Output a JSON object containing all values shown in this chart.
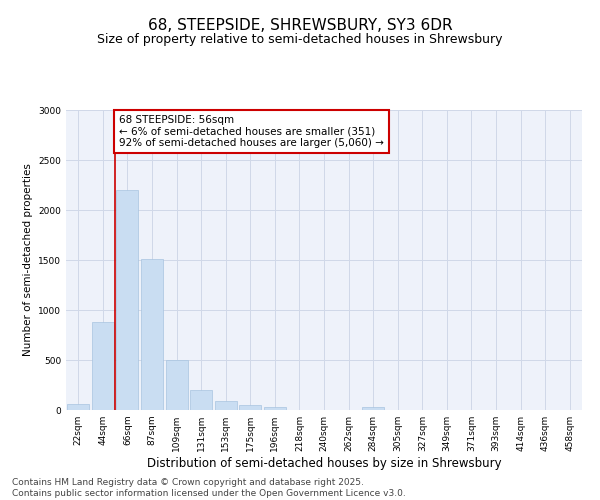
{
  "title": "68, STEEPSIDE, SHREWSBURY, SY3 6DR",
  "subtitle": "Size of property relative to semi-detached houses in Shrewsbury",
  "xlabel": "Distribution of semi-detached houses by size in Shrewsbury",
  "ylabel": "Number of semi-detached properties",
  "footer_line1": "Contains HM Land Registry data © Crown copyright and database right 2025.",
  "footer_line2": "Contains public sector information licensed under the Open Government Licence v3.0.",
  "bar_labels": [
    "22sqm",
    "44sqm",
    "66sqm",
    "87sqm",
    "109sqm",
    "131sqm",
    "153sqm",
    "175sqm",
    "196sqm",
    "218sqm",
    "240sqm",
    "262sqm",
    "284sqm",
    "305sqm",
    "327sqm",
    "349sqm",
    "371sqm",
    "393sqm",
    "414sqm",
    "436sqm",
    "458sqm"
  ],
  "bar_values": [
    60,
    880,
    2200,
    1510,
    500,
    205,
    95,
    55,
    30,
    0,
    0,
    0,
    30,
    0,
    0,
    0,
    0,
    0,
    0,
    0,
    0
  ],
  "bar_color": "#c9ddf2",
  "bar_edge_color": "#a8c4e0",
  "ylim": [
    0,
    3000
  ],
  "yticks": [
    0,
    500,
    1000,
    1500,
    2000,
    2500,
    3000
  ],
  "grid_color": "#d0d8e8",
  "bg_color": "#eef2fa",
  "annotation_text": "68 STEEPSIDE: 56sqm\n← 6% of semi-detached houses are smaller (351)\n92% of semi-detached houses are larger (5,060) →",
  "annotation_box_color": "#ffffff",
  "annotation_box_edge": "#cc0000",
  "vline_x": 1.5,
  "vline_color": "#cc0000",
  "title_fontsize": 11,
  "subtitle_fontsize": 9,
  "xlabel_fontsize": 8.5,
  "ylabel_fontsize": 7.5,
  "tick_fontsize": 6.5,
  "annotation_fontsize": 7.5,
  "footer_fontsize": 6.5
}
